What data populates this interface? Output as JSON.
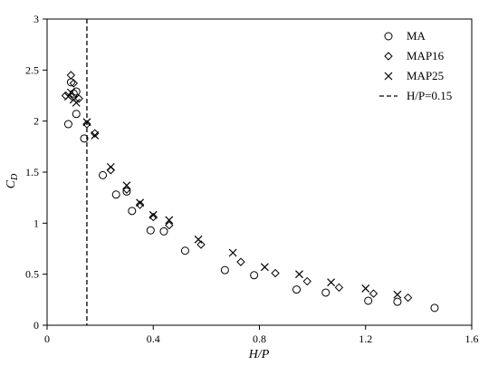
{
  "chart_data": {
    "type": "scatter",
    "xlabel": "H/P",
    "ylabel": {
      "main": "C",
      "sub": "D"
    },
    "xlim": [
      0,
      1.6
    ],
    "ylim": [
      0,
      3
    ],
    "xticks": [
      0,
      0.4,
      0.8,
      1.2,
      1.6
    ],
    "xtick_labels": [
      "0",
      "0.4",
      "0.8",
      "1.2",
      "1.6"
    ],
    "yticks": [
      0,
      0.5,
      1,
      1.5,
      2,
      2.5,
      3
    ],
    "ytick_labels": [
      "0",
      "0.5",
      "1",
      "1.5",
      "2",
      "2.5",
      "3"
    ],
    "grid": false,
    "legend_position": "top-right",
    "series": [
      {
        "name": "MA",
        "marker": "circle",
        "points": [
          [
            0.08,
            1.97
          ],
          [
            0.09,
            2.38
          ],
          [
            0.1,
            2.27
          ],
          [
            0.11,
            2.29
          ],
          [
            0.11,
            2.07
          ],
          [
            0.14,
            1.83
          ],
          [
            0.21,
            1.47
          ],
          [
            0.26,
            1.28
          ],
          [
            0.3,
            1.31
          ],
          [
            0.32,
            1.12
          ],
          [
            0.39,
            0.93
          ],
          [
            0.44,
            0.92
          ],
          [
            0.52,
            0.73
          ],
          [
            0.67,
            0.54
          ],
          [
            0.78,
            0.49
          ],
          [
            0.94,
            0.35
          ],
          [
            1.05,
            0.32
          ],
          [
            1.21,
            0.24
          ],
          [
            1.32,
            0.23
          ],
          [
            1.46,
            0.17
          ]
        ]
      },
      {
        "name": "MAP16",
        "marker": "diamond",
        "points": [
          [
            0.07,
            2.25
          ],
          [
            0.09,
            2.45
          ],
          [
            0.1,
            2.37
          ],
          [
            0.12,
            2.22
          ],
          [
            0.15,
            1.97
          ],
          [
            0.18,
            1.88
          ],
          [
            0.24,
            1.52
          ],
          [
            0.3,
            1.33
          ],
          [
            0.35,
            1.18
          ],
          [
            0.4,
            1.06
          ],
          [
            0.46,
            0.98
          ],
          [
            0.58,
            0.79
          ],
          [
            0.73,
            0.62
          ],
          [
            0.86,
            0.51
          ],
          [
            0.98,
            0.43
          ],
          [
            1.1,
            0.37
          ],
          [
            1.23,
            0.31
          ],
          [
            1.36,
            0.27
          ]
        ]
      },
      {
        "name": "MAP25",
        "marker": "cross",
        "points": [
          [
            0.08,
            2.24
          ],
          [
            0.09,
            2.28
          ],
          [
            0.1,
            2.21
          ],
          [
            0.11,
            2.18
          ],
          [
            0.15,
            1.99
          ],
          [
            0.18,
            1.86
          ],
          [
            0.24,
            1.55
          ],
          [
            0.3,
            1.37
          ],
          [
            0.35,
            1.2
          ],
          [
            0.4,
            1.08
          ],
          [
            0.46,
            1.03
          ],
          [
            0.57,
            0.84
          ],
          [
            0.7,
            0.71
          ],
          [
            0.82,
            0.57
          ],
          [
            0.95,
            0.5
          ],
          [
            1.07,
            0.42
          ],
          [
            1.2,
            0.36
          ],
          [
            1.32,
            0.3
          ]
        ]
      }
    ],
    "reference_line": {
      "name": "H/P=0.15",
      "x": 0.15,
      "style": "dashed"
    }
  }
}
